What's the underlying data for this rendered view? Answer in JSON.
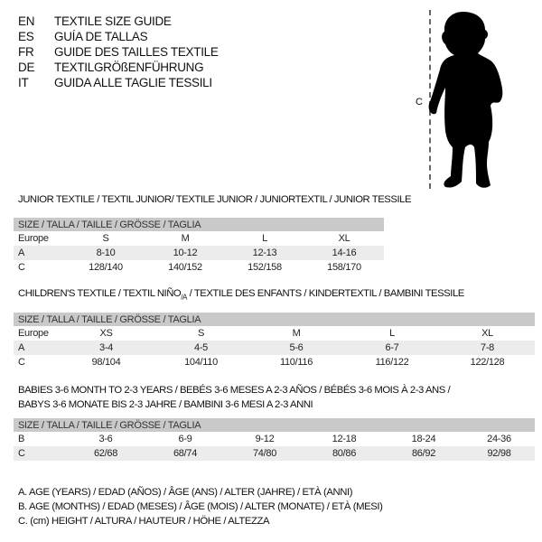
{
  "header": {
    "languages": [
      {
        "code": "EN",
        "title": "TEXTILE SIZE GUIDE"
      },
      {
        "code": "ES",
        "title": "GUÍA DE TALLAS"
      },
      {
        "code": "FR",
        "title": "GUIDE DES TAILLES TEXTILE"
      },
      {
        "code": "DE",
        "title": "TEXTILGRÖßENFÜHRUNG"
      },
      {
        "code": "IT",
        "title": "GUIDA ALLE TAGLIE TESSILI"
      }
    ]
  },
  "figure": {
    "measure_label": "C",
    "icon": "baby-silhouette"
  },
  "size_header": "SIZE / TALLA / TAILLE / GRÖSSE / TAGLIA",
  "junior": {
    "title": "JUNIOR TEXTILE / TEXTIL JUNIOR/ TEXTILE JUNIOR / JUNIORTEXTIL / JUNIOR TESSILE",
    "rows": [
      {
        "label": "Europe",
        "values": [
          "S",
          "M",
          "L",
          "XL"
        ]
      },
      {
        "label": "A",
        "values": [
          "8-10",
          "10-12",
          "12-13",
          "14-16"
        ]
      },
      {
        "label": "C",
        "values": [
          "128/140",
          "140/152",
          "152/158",
          "158/170"
        ]
      }
    ]
  },
  "children": {
    "title_a": "CHILDREN'S TEXTILE / TEXTIL NIÑO",
    "title_sub": "/A",
    "title_b": " / TEXTILE DES ENFANTS / KINDERTEXTIL / BAMBINI TESSILE",
    "rows": [
      {
        "label": "Europe",
        "values": [
          "XS",
          "S",
          "M",
          "L",
          "XL"
        ]
      },
      {
        "label": "A",
        "values": [
          "3-4",
          "4-5",
          "5-6",
          "6-7",
          "7-8"
        ]
      },
      {
        "label": "C",
        "values": [
          "98/104",
          "104/110",
          "110/116",
          "116/122",
          "122/128"
        ]
      }
    ]
  },
  "babies": {
    "title_line1": "BABIES 3-6 MONTH TO 2-3 YEARS / BEBÉS 3-6 MESES A 2-3 AÑOS / BÉBÉS 3-6 MOIS À 2-3 ANS /",
    "title_line2": "BABYS 3-6 MONATE BIS 2-3 JAHRE / BAMBINI 3-6 MESI A 2-3 ANNI",
    "rows": [
      {
        "label": "B",
        "values": [
          "3-6",
          "6-9",
          "9-12",
          "12-18",
          "18-24",
          "24-36"
        ]
      },
      {
        "label": "C",
        "values": [
          "62/68",
          "68/74",
          "74/80",
          "80/86",
          "86/92",
          "92/98"
        ]
      }
    ]
  },
  "legend": [
    "A. AGE (YEARS) / EDAD (AÑOS) / ÂGE (ANS) / ALTER (JAHRE) / ETÀ (ANNI)",
    "B. AGE (MONTHS) / EDAD (MESES) / ÂGE (MOIS) / ALTER (MONATE) / ETÀ (MESI)",
    "C. (cm) HEIGHT / ALTURA / HAUTEUR / HÖHE / ALTEZZA"
  ],
  "colors": {
    "header_bg": "#c9c9c9",
    "shade_bg": "#ececec"
  }
}
